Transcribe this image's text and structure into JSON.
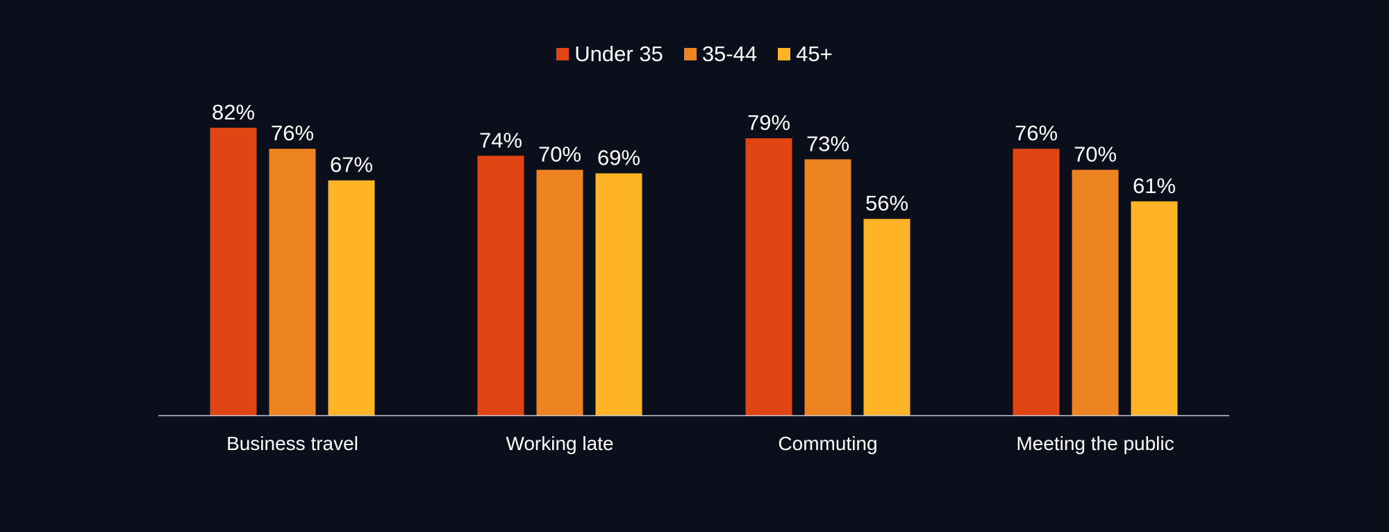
{
  "chart_data": {
    "type": "bar",
    "categories": [
      "Business travel",
      "Working late",
      "Commuting",
      "Meeting the public"
    ],
    "series": [
      {
        "name": "Under 35",
        "values": [
          82,
          74,
          79,
          76
        ],
        "color": "#e04513"
      },
      {
        "name": "35-44",
        "values": [
          76,
          70,
          73,
          70
        ],
        "color": "#ee8322"
      },
      {
        "name": "45+",
        "values": [
          67,
          69,
          56,
          61
        ],
        "color": "#ffb327"
      }
    ],
    "value_suffix": "%",
    "ylim": [
      0,
      100
    ],
    "grid": false,
    "legend_position": "top-center",
    "title": "",
    "xlabel": "",
    "ylabel": ""
  },
  "colors": {
    "background": "#0b0f1c",
    "axis": "#c9ccd3",
    "text": "#ffffff"
  }
}
